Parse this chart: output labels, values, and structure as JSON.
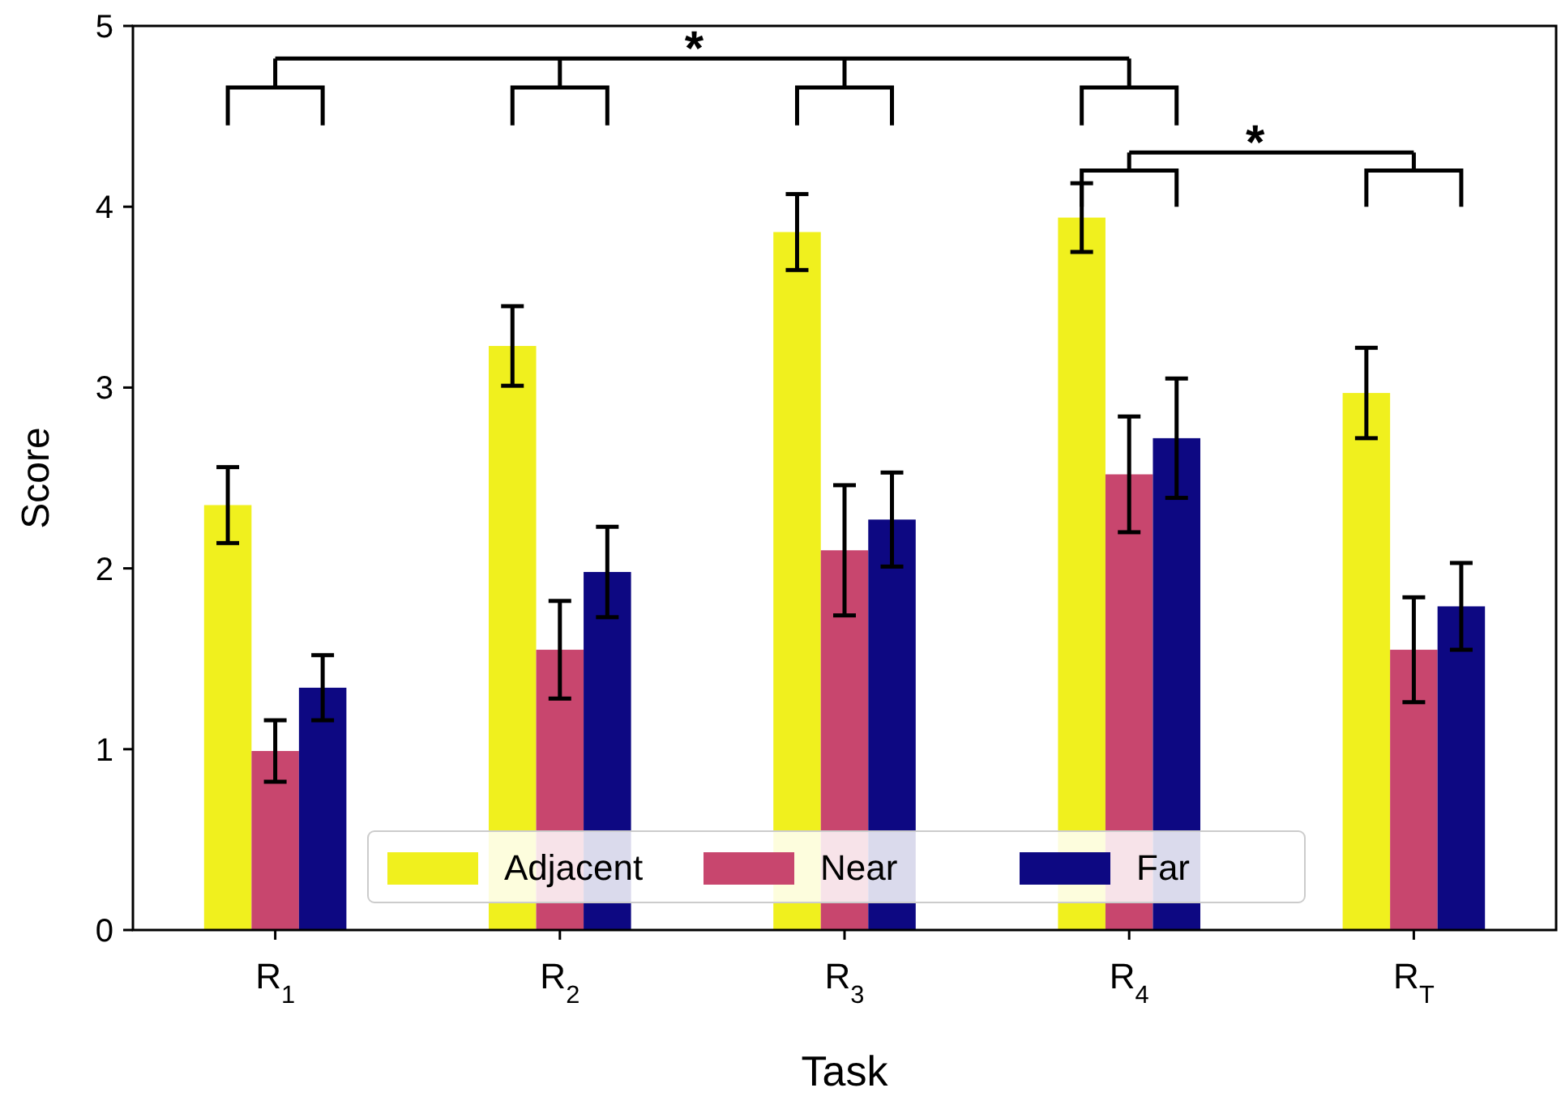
{
  "chart_data": {
    "type": "bar",
    "xlabel": "Task",
    "ylabel": "Score",
    "categories": [
      "R$_{1}$",
      "R$_{2}$",
      "R$_{3}$",
      "R$_{4}$",
      "R$_{T}$"
    ],
    "series": [
      {
        "name": "Adjacent",
        "color": "#f0f01e",
        "values": [
          2.35,
          3.23,
          3.86,
          3.94,
          2.97
        ],
        "errors": [
          0.21,
          0.22,
          0.21,
          0.19,
          0.25
        ]
      },
      {
        "name": "Near",
        "color": "#c8466e",
        "values": [
          0.99,
          1.55,
          2.1,
          2.52,
          1.55
        ],
        "errors": [
          0.17,
          0.27,
          0.36,
          0.32,
          0.29
        ]
      },
      {
        "name": "Far",
        "color": "#0d0882",
        "values": [
          1.34,
          1.98,
          2.27,
          2.72,
          1.79
        ],
        "errors": [
          0.18,
          0.25,
          0.26,
          0.33,
          0.24
        ]
      }
    ],
    "ylim": [
      0,
      5
    ],
    "yticks": [
      0,
      1,
      2,
      3,
      4,
      5
    ],
    "legend": "bottom",
    "annotations": [
      "*",
      "*"
    ]
  }
}
